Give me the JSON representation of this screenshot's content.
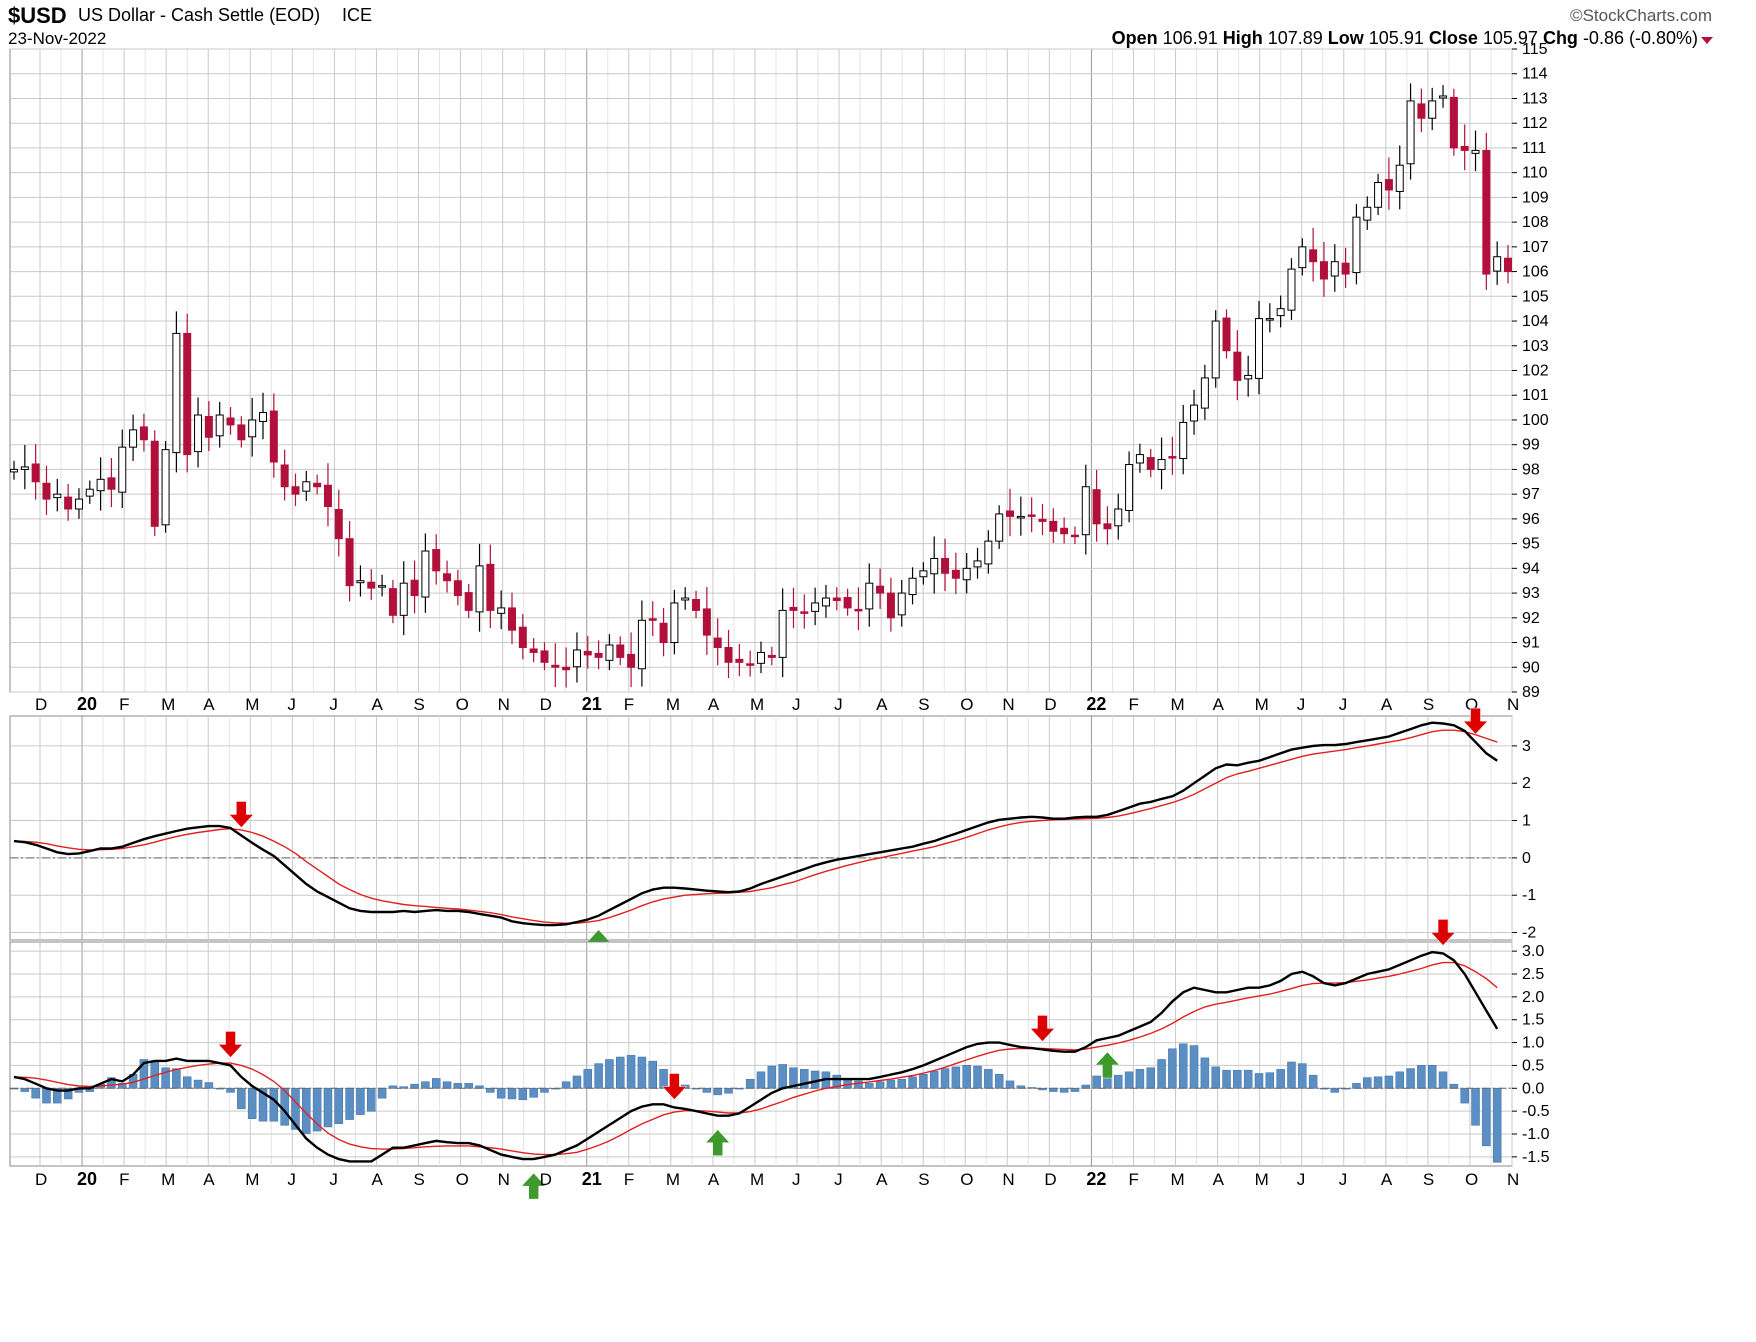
{
  "header": {
    "symbol": "$USD",
    "name": "US Dollar - Cash Settle (EOD)",
    "exchange": "ICE",
    "date": "23-Nov-2022",
    "brand": "©StockCharts.com",
    "ohlc": [
      {
        "label": "Open",
        "value": "106.91"
      },
      {
        "label": "High",
        "value": "107.89"
      },
      {
        "label": "Low",
        "value": "105.91"
      },
      {
        "label": "Close",
        "value": "105.97"
      },
      {
        "label": "Chg",
        "value": "-0.86 (-0.80%)"
      }
    ],
    "chg_marker": "down-triangle-icon"
  },
  "colors": {
    "up_candle": "#ffffff",
    "down_candle": "#b0103a",
    "wick": "#000000",
    "signal_line": "#e02020",
    "indicator_line": "#000000",
    "histogram": "#5b8fc4",
    "sell_arrow": "#dd0000",
    "buy_arrow": "#3f9a2e",
    "grid": "#c9c9c9"
  },
  "chart_data": [
    {
      "type": "candlestick",
      "title": "$USD US Dollar - Cash Settle (EOD)",
      "period": "weekly",
      "ylim": [
        89,
        115
      ],
      "y_ticks": [
        89,
        90,
        91,
        92,
        93,
        94,
        95,
        96,
        97,
        98,
        99,
        100,
        101,
        102,
        103,
        104,
        105,
        106,
        107,
        108,
        109,
        110,
        111,
        112,
        113,
        114,
        115
      ],
      "x_labels": [
        "D",
        "20",
        "F",
        "M",
        "A",
        "M",
        "J",
        "J",
        "A",
        "S",
        "O",
        "N",
        "D",
        "21",
        "F",
        "M",
        "A",
        "M",
        "J",
        "J",
        "A",
        "S",
        "O",
        "N",
        "D",
        "22",
        "F",
        "M",
        "A",
        "M",
        "J",
        "J",
        "A",
        "S",
        "O",
        "N"
      ],
      "close": [
        98.0,
        98.1,
        97.5,
        96.8,
        97.0,
        96.4,
        96.8,
        97.2,
        97.6,
        97.2,
        98.9,
        99.6,
        99.2,
        95.7,
        98.8,
        103.5,
        98.6,
        100.2,
        99.3,
        100.2,
        99.8,
        99.2,
        100.0,
        100.3,
        98.3,
        97.3,
        97.0,
        97.5,
        97.3,
        96.5,
        95.2,
        93.3,
        93.5,
        93.2,
        93.3,
        92.1,
        93.4,
        92.9,
        94.7,
        93.9,
        93.5,
        92.9,
        92.3,
        94.1,
        92.3,
        92.4,
        91.5,
        90.8,
        90.6,
        90.2,
        90.0,
        89.9,
        90.7,
        90.5,
        90.4,
        90.9,
        90.4,
        90.0,
        91.9,
        91.9,
        91.0,
        92.6,
        92.8,
        92.3,
        91.3,
        90.8,
        90.2,
        90.2,
        90.1,
        90.6,
        90.4,
        92.3,
        92.3,
        92.2,
        92.6,
        92.8,
        92.7,
        92.4,
        92.3,
        93.4,
        93.0,
        92.0,
        93.0,
        93.6,
        93.9,
        94.4,
        93.8,
        93.6,
        94.0,
        94.3,
        95.1,
        96.2,
        96.1,
        96.1,
        96.1,
        95.9,
        95.5,
        95.4,
        95.3,
        97.3,
        95.8,
        95.6,
        96.4,
        98.2,
        98.6,
        98.0,
        98.4,
        98.5,
        99.9,
        100.6,
        101.7,
        104.0,
        102.8,
        101.6,
        101.8,
        104.1,
        104.1,
        104.5,
        106.1,
        107.0,
        106.4,
        105.7,
        106.4,
        105.9,
        108.2,
        108.6,
        109.6,
        109.3,
        110.3,
        112.9,
        112.2,
        112.9,
        113.1,
        111.0,
        110.9,
        110.9,
        105.9,
        106.6,
        106.0
      ]
    },
    {
      "type": "line",
      "ylim": [
        -2.2,
        3.8
      ],
      "y_ticks": [
        -2,
        -1,
        0,
        1,
        2,
        3
      ],
      "series": [
        {
          "name": "",
          "values": [
            0.45,
            0.42,
            0.35,
            0.25,
            0.15,
            0.1,
            0.12,
            0.18,
            0.25,
            0.25,
            0.3,
            0.4,
            0.5,
            0.58,
            0.65,
            0.72,
            0.78,
            0.82,
            0.85,
            0.85,
            0.8,
            0.6,
            0.4,
            0.22,
            0.05,
            -0.2,
            -0.45,
            -0.7,
            -0.9,
            -1.05,
            -1.2,
            -1.35,
            -1.42,
            -1.45,
            -1.45,
            -1.45,
            -1.42,
            -1.45,
            -1.42,
            -1.4,
            -1.42,
            -1.42,
            -1.45,
            -1.5,
            -1.55,
            -1.6,
            -1.7,
            -1.75,
            -1.78,
            -1.8,
            -1.8,
            -1.78,
            -1.72,
            -1.65,
            -1.55,
            -1.4,
            -1.25,
            -1.1,
            -0.95,
            -0.85,
            -0.8,
            -0.8,
            -0.82,
            -0.85,
            -0.88,
            -0.9,
            -0.92,
            -0.9,
            -0.82,
            -0.7,
            -0.6,
            -0.5,
            -0.4,
            -0.3,
            -0.2,
            -0.12,
            -0.05,
            0.0,
            0.05,
            0.1,
            0.15,
            0.2,
            0.25,
            0.3,
            0.38,
            0.45,
            0.55,
            0.65,
            0.75,
            0.85,
            0.95,
            1.02,
            1.05,
            1.08,
            1.1,
            1.08,
            1.05,
            1.05,
            1.08,
            1.1,
            1.1,
            1.15,
            1.25,
            1.35,
            1.45,
            1.5,
            1.58,
            1.65,
            1.8,
            2.0,
            2.2,
            2.4,
            2.5,
            2.48,
            2.55,
            2.6,
            2.7,
            2.8,
            2.9,
            2.95,
            3.0,
            3.02,
            3.02,
            3.05,
            3.1,
            3.15,
            3.2,
            3.25,
            3.35,
            3.45,
            3.55,
            3.62,
            3.6,
            3.55,
            3.4,
            3.1,
            2.8,
            2.6
          ]
        },
        {
          "name": "",
          "values": [
            0.45,
            0.44,
            0.42,
            0.38,
            0.32,
            0.27,
            0.23,
            0.21,
            0.22,
            0.23,
            0.25,
            0.3,
            0.35,
            0.42,
            0.5,
            0.57,
            0.63,
            0.68,
            0.72,
            0.76,
            0.78,
            0.75,
            0.68,
            0.58,
            0.45,
            0.3,
            0.12,
            -0.1,
            -0.3,
            -0.5,
            -0.7,
            -0.85,
            -0.98,
            -1.08,
            -1.15,
            -1.2,
            -1.25,
            -1.28,
            -1.3,
            -1.33,
            -1.35,
            -1.37,
            -1.4,
            -1.43,
            -1.47,
            -1.52,
            -1.58,
            -1.63,
            -1.68,
            -1.72,
            -1.74,
            -1.75,
            -1.75,
            -1.72,
            -1.68,
            -1.6,
            -1.5,
            -1.4,
            -1.28,
            -1.18,
            -1.1,
            -1.05,
            -1.0,
            -0.98,
            -0.96,
            -0.95,
            -0.94,
            -0.92,
            -0.9,
            -0.85,
            -0.8,
            -0.72,
            -0.65,
            -0.55,
            -0.45,
            -0.36,
            -0.28,
            -0.2,
            -0.13,
            -0.06,
            0.0,
            0.06,
            0.12,
            0.18,
            0.24,
            0.3,
            0.38,
            0.46,
            0.55,
            0.65,
            0.75,
            0.83,
            0.9,
            0.95,
            0.98,
            1.0,
            1.02,
            1.03,
            1.04,
            1.05,
            1.06,
            1.08,
            1.12,
            1.18,
            1.25,
            1.32,
            1.4,
            1.48,
            1.58,
            1.7,
            1.85,
            2.0,
            2.15,
            2.25,
            2.32,
            2.4,
            2.48,
            2.56,
            2.64,
            2.72,
            2.78,
            2.82,
            2.86,
            2.9,
            2.95,
            3.0,
            3.05,
            3.1,
            3.15,
            3.22,
            3.3,
            3.38,
            3.42,
            3.42,
            3.38,
            3.3,
            3.2,
            3.1
          ]
        }
      ],
      "annotations": [
        {
          "type": "sell-arrow",
          "x_index": 21
        },
        {
          "type": "buy-arrow",
          "x_index": 54
        },
        {
          "type": "sell-arrow",
          "x_index": 135
        }
      ]
    },
    {
      "type": "line+histogram",
      "ylim": [
        -1.7,
        3.2
      ],
      "y_ticks": [
        -1.5,
        -1.0,
        -0.5,
        0.0,
        0.5,
        1.0,
        1.5,
        2.0,
        2.5,
        3.0
      ],
      "series": [
        {
          "name": "",
          "values": [
            0.25,
            0.2,
            0.1,
            0.0,
            -0.05,
            -0.05,
            0.0,
            0.0,
            0.1,
            0.2,
            0.15,
            0.3,
            0.55,
            0.6,
            0.6,
            0.65,
            0.6,
            0.6,
            0.6,
            0.55,
            0.5,
            0.25,
            0.05,
            -0.1,
            -0.25,
            -0.5,
            -0.8,
            -1.1,
            -1.3,
            -1.45,
            -1.55,
            -1.6,
            -1.6,
            -1.6,
            -1.45,
            -1.3,
            -1.3,
            -1.25,
            -1.2,
            -1.15,
            -1.18,
            -1.2,
            -1.2,
            -1.25,
            -1.35,
            -1.45,
            -1.5,
            -1.55,
            -1.55,
            -1.5,
            -1.45,
            -1.35,
            -1.25,
            -1.1,
            -0.95,
            -0.8,
            -0.65,
            -0.5,
            -0.4,
            -0.35,
            -0.35,
            -0.42,
            -0.45,
            -0.5,
            -0.55,
            -0.6,
            -0.6,
            -0.55,
            -0.4,
            -0.25,
            -0.1,
            0.0,
            0.05,
            0.1,
            0.15,
            0.2,
            0.2,
            0.2,
            0.2,
            0.2,
            0.25,
            0.3,
            0.35,
            0.42,
            0.5,
            0.6,
            0.7,
            0.8,
            0.9,
            0.97,
            1.0,
            1.0,
            0.95,
            0.9,
            0.88,
            0.85,
            0.82,
            0.8,
            0.8,
            0.9,
            1.05,
            1.1,
            1.15,
            1.25,
            1.35,
            1.45,
            1.65,
            1.9,
            2.1,
            2.2,
            2.15,
            2.1,
            2.1,
            2.15,
            2.2,
            2.2,
            2.25,
            2.35,
            2.5,
            2.55,
            2.45,
            2.3,
            2.25,
            2.3,
            2.4,
            2.5,
            2.55,
            2.6,
            2.7,
            2.8,
            2.9,
            2.98,
            2.95,
            2.8,
            2.5,
            2.1,
            1.7,
            1.3
          ]
        },
        {
          "name": "",
          "values": [
            0.25,
            0.24,
            0.22,
            0.18,
            0.13,
            0.08,
            0.05,
            0.04,
            0.05,
            0.07,
            0.09,
            0.13,
            0.2,
            0.28,
            0.35,
            0.41,
            0.46,
            0.5,
            0.53,
            0.55,
            0.55,
            0.5,
            0.42,
            0.3,
            0.15,
            -0.05,
            -0.3,
            -0.55,
            -0.78,
            -0.98,
            -1.12,
            -1.22,
            -1.28,
            -1.32,
            -1.33,
            -1.33,
            -1.32,
            -1.3,
            -1.28,
            -1.27,
            -1.26,
            -1.26,
            -1.26,
            -1.28,
            -1.3,
            -1.33,
            -1.37,
            -1.41,
            -1.44,
            -1.45,
            -1.45,
            -1.43,
            -1.4,
            -1.33,
            -1.25,
            -1.15,
            -1.03,
            -0.9,
            -0.78,
            -0.68,
            -0.58,
            -0.52,
            -0.49,
            -0.49,
            -0.5,
            -0.52,
            -0.54,
            -0.54,
            -0.51,
            -0.45,
            -0.37,
            -0.29,
            -0.2,
            -0.13,
            -0.06,
            0.0,
            0.04,
            0.08,
            0.11,
            0.14,
            0.17,
            0.2,
            0.24,
            0.28,
            0.33,
            0.39,
            0.46,
            0.54,
            0.62,
            0.7,
            0.77,
            0.83,
            0.86,
            0.87,
            0.87,
            0.87,
            0.86,
            0.85,
            0.84,
            0.86,
            0.9,
            0.94,
            0.99,
            1.05,
            1.12,
            1.2,
            1.3,
            1.42,
            1.56,
            1.68,
            1.78,
            1.84,
            1.88,
            1.93,
            1.98,
            2.02,
            2.06,
            2.12,
            2.18,
            2.25,
            2.29,
            2.3,
            2.3,
            2.31,
            2.34,
            2.37,
            2.41,
            2.45,
            2.5,
            2.56,
            2.62,
            2.7,
            2.75,
            2.75,
            2.68,
            2.55,
            2.4,
            2.2
          ]
        }
      ],
      "annotations": [
        {
          "type": "sell-arrow",
          "x_index": 20
        },
        {
          "type": "buy-arrow",
          "x_index": 48
        },
        {
          "type": "sell-arrow",
          "x_index": 61
        },
        {
          "type": "buy-arrow",
          "x_index": 65
        },
        {
          "type": "sell-arrow",
          "x_index": 95
        },
        {
          "type": "buy-arrow",
          "x_index": 101
        },
        {
          "type": "sell-arrow",
          "x_index": 132
        }
      ]
    }
  ]
}
